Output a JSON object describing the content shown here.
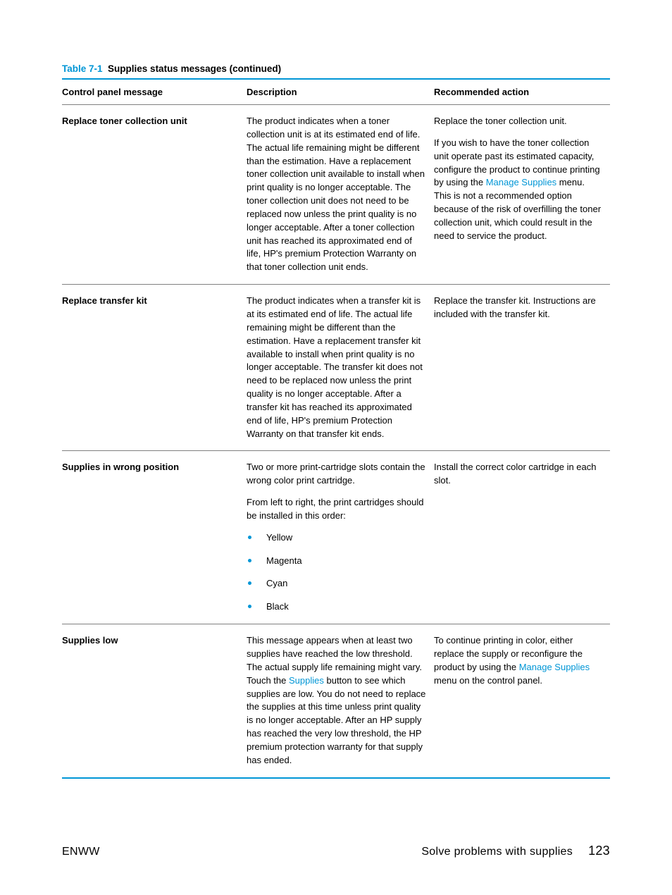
{
  "colors": {
    "accent": "#0096d6",
    "rule": "#808080",
    "text": "#000000",
    "background": "#ffffff"
  },
  "caption": {
    "number": "Table 7-1",
    "title": "Supplies status messages (continued)"
  },
  "columns": {
    "c1": "Control panel message",
    "c2": "Description",
    "c3": "Recommended action"
  },
  "rows": [
    {
      "message": "Replace toner collection unit",
      "description": [
        {
          "type": "p",
          "runs": [
            {
              "t": "The product indicates when a toner collection unit is at its estimated end of life. The actual life remaining might be different than the estimation. Have a replacement toner collection unit available to install when print quality is no longer acceptable. The toner collection unit does not need to be replaced now unless the print quality is no longer acceptable. After a toner collection unit has reached its approximated end of life, HP's premium Protection Warranty on that toner collection unit ends."
            }
          ]
        }
      ],
      "action": [
        {
          "type": "p",
          "runs": [
            {
              "t": "Replace the toner collection unit."
            }
          ]
        },
        {
          "type": "p",
          "runs": [
            {
              "t": "If you wish to have the toner collection unit operate past its estimated capacity, configure the product to continue printing by using the "
            },
            {
              "t": "Manage Supplies",
              "link": true
            },
            {
              "t": " menu. This is not a recommended option because of the risk of overfilling the toner collection unit, which could result in the need to service the product."
            }
          ]
        }
      ]
    },
    {
      "message": "Replace transfer kit",
      "description": [
        {
          "type": "p",
          "runs": [
            {
              "t": "The product indicates when a transfer kit is at its estimated end of life. The actual life remaining might be different than the estimation. Have a replacement transfer kit available to install when print quality is no longer acceptable. The transfer kit does not need to be replaced now unless the print quality is no longer acceptable. After a transfer kit has reached its approximated end of life, HP's premium Protection Warranty on that transfer kit ends."
            }
          ]
        }
      ],
      "action": [
        {
          "type": "p",
          "runs": [
            {
              "t": "Replace the transfer kit. Instructions are included with the transfer kit."
            }
          ]
        }
      ]
    },
    {
      "message": "Supplies in wrong position",
      "description": [
        {
          "type": "p",
          "runs": [
            {
              "t": "Two or more print-cartridge slots contain the wrong color print cartridge."
            }
          ]
        },
        {
          "type": "p",
          "runs": [
            {
              "t": "From left to right, the print cartridges should be installed in this order:"
            }
          ]
        },
        {
          "type": "ul",
          "items": [
            "Yellow",
            "Magenta",
            "Cyan",
            "Black"
          ]
        }
      ],
      "action": [
        {
          "type": "p",
          "runs": [
            {
              "t": "Install the correct color cartridge in each slot."
            }
          ]
        }
      ]
    },
    {
      "message": "Supplies low",
      "description": [
        {
          "type": "p",
          "runs": [
            {
              "t": "This message appears when at least two supplies have reached the low threshold. The actual supply life remaining might vary. Touch the "
            },
            {
              "t": "Supplies",
              "link": true
            },
            {
              "t": " button to see which supplies are low. You do not need to replace the supplies at this time unless print quality is no longer acceptable. After an HP supply has reached the very low threshold, the HP premium protection warranty for that supply has ended."
            }
          ]
        }
      ],
      "action": [
        {
          "type": "p",
          "runs": [
            {
              "t": "To continue printing in color, either replace the supply or reconfigure the product by using the "
            },
            {
              "t": "Manage Supplies",
              "link": true
            },
            {
              "t": " menu on the control panel."
            }
          ]
        }
      ]
    }
  ],
  "footer": {
    "left": "ENWW",
    "rightText": "Solve problems with supplies",
    "pageNumber": "123"
  }
}
